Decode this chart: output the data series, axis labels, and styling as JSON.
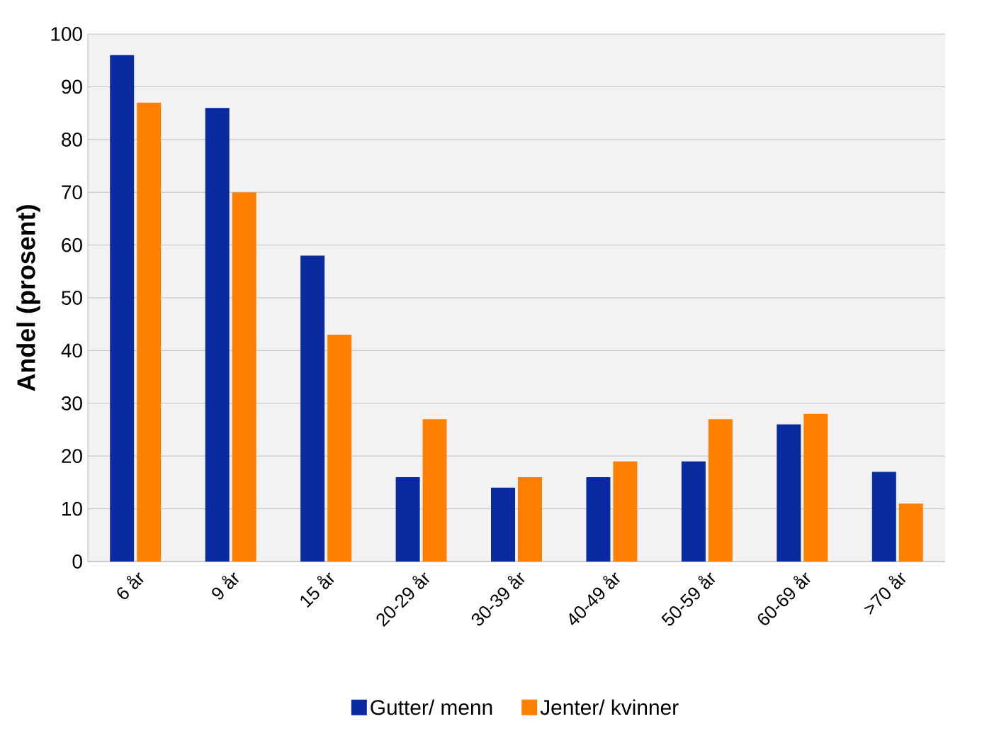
{
  "chart_data": {
    "type": "bar",
    "ylabel": "Andel (prosent)",
    "categories": [
      "6 år",
      "9 år",
      "15 år",
      "20-29 år",
      "30-39 år",
      "40-49 år",
      "50-59 år",
      "60-69 år",
      ">70 år"
    ],
    "series": [
      {
        "name": "Gutter/ menn",
        "color": "#0a2aa0",
        "values": [
          96,
          86,
          58,
          16,
          14,
          16,
          19,
          26,
          17
        ]
      },
      {
        "name": "Jenter/ kvinner",
        "color": "#ff8000",
        "values": [
          87,
          70,
          43,
          27,
          16,
          19,
          27,
          28,
          11
        ]
      }
    ],
    "ylim": [
      0,
      100
    ],
    "yticks": [
      0,
      10,
      20,
      30,
      40,
      50,
      60,
      70,
      80,
      90,
      100
    ],
    "grid": "y",
    "legend": "bottom"
  }
}
